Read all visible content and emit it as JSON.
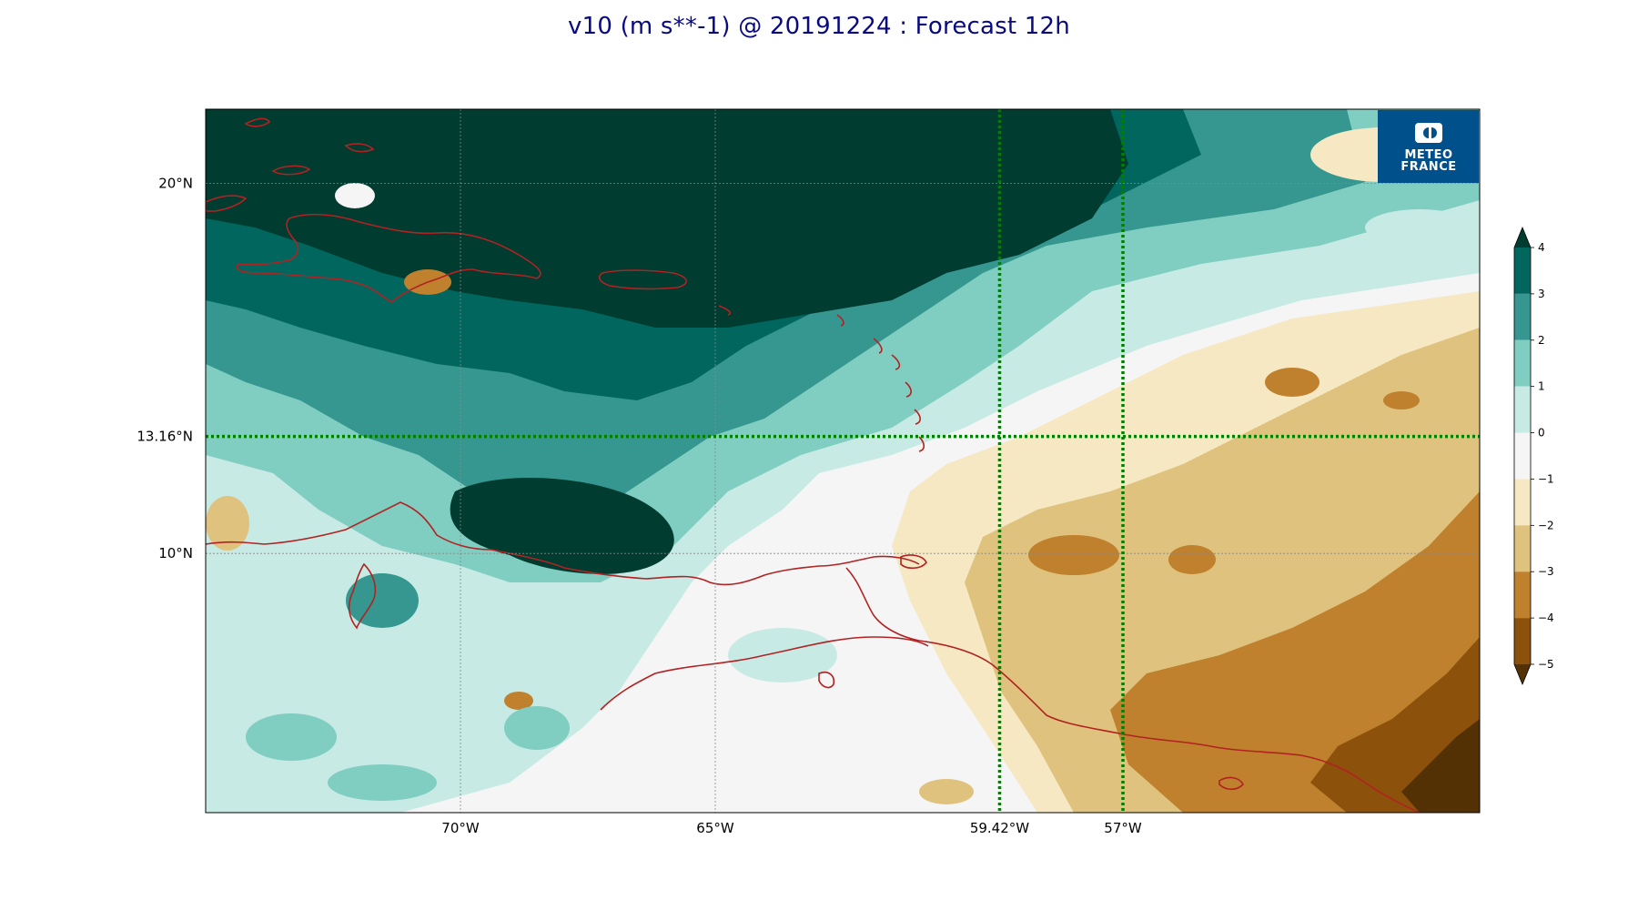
{
  "title": "v10 (m s**-1) @ 20191224 : Forecast 12h",
  "logo": {
    "line1": "METEO",
    "line2": "FRANCE",
    "background": "#00508c"
  },
  "map": {
    "lon_range": [
      -75,
      -50
    ],
    "lat_range": [
      3,
      22
    ],
    "lon_ticks": [
      {
        "value": -70,
        "label": "70°W",
        "style": "grid"
      },
      {
        "value": -65,
        "label": "65°W",
        "style": "grid"
      },
      {
        "value": -59.42,
        "label": "59.42°W",
        "style": "highlight"
      },
      {
        "value": -57,
        "label": "57°W",
        "style": "highlight"
      }
    ],
    "lat_ticks": [
      {
        "value": 20,
        "label": "20°N",
        "style": "grid"
      },
      {
        "value": 13.16,
        "label": "13.16°N",
        "style": "highlight"
      },
      {
        "value": 10,
        "label": "10°N",
        "style": "grid"
      }
    ],
    "coastline_color": "#b22222",
    "highlight_line_color": "#008000"
  },
  "colorbar": {
    "ticks": [
      "4",
      "3",
      "2",
      "1",
      "0",
      "−1",
      "−2",
      "−3",
      "−4",
      "−5"
    ],
    "colors": [
      "#003c30",
      "#01665e",
      "#35978f",
      "#80cdc1",
      "#c7eae5",
      "#f5f5f5",
      "#f6e8c3",
      "#dfc27d",
      "#bf812d",
      "#8c510a",
      "#543005"
    ],
    "levels": [
      4,
      3,
      2,
      1,
      0,
      -1,
      -2,
      -3,
      -4,
      -5
    ]
  }
}
